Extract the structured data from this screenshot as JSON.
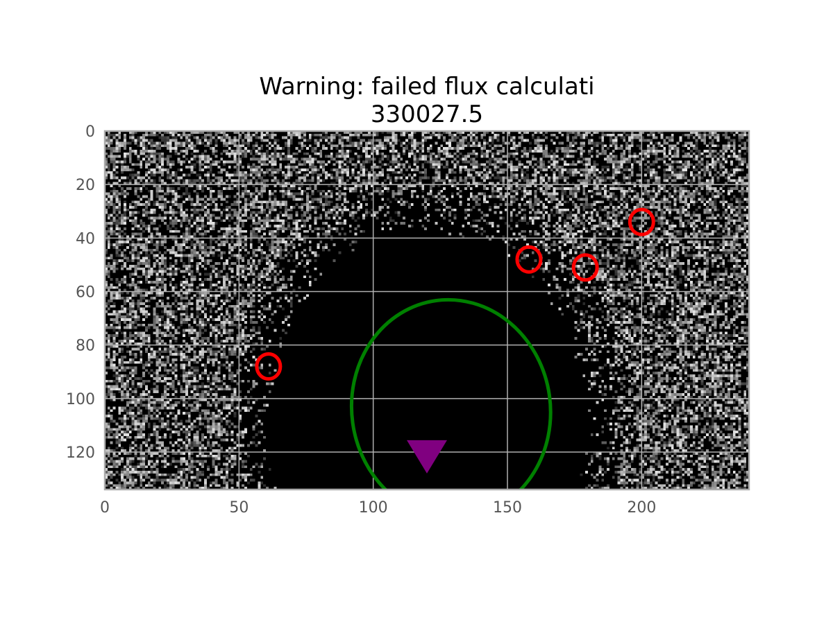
{
  "chart_data": {
    "type": "heatmap",
    "title": "Warning: failed flux calculati",
    "subtitle": "330027.5",
    "xlabel": "",
    "ylabel": "",
    "xlim": [
      0,
      240
    ],
    "ylim": [
      134,
      0
    ],
    "x_ticks": [
      0,
      50,
      100,
      150,
      200
    ],
    "y_ticks": [
      0,
      20,
      40,
      60,
      80,
      100,
      120
    ],
    "grid": true,
    "image": {
      "width": 240,
      "height": 134,
      "colormap": "gray",
      "background": "#000000",
      "dark_region": {
        "cx": 120,
        "cy": 110,
        "rx": 58,
        "ry": 72
      }
    },
    "overlays": {
      "sources": {
        "marker": "circle",
        "color": "#ff0000",
        "points": [
          {
            "x": 61,
            "y": 88
          },
          {
            "x": 158,
            "y": 48
          },
          {
            "x": 179,
            "y": 51
          },
          {
            "x": 200,
            "y": 34
          }
        ]
      },
      "aperture": {
        "shape": "ellipse",
        "color": "#008000",
        "cx": 129,
        "cy": 104,
        "rx": 37,
        "ry": 41,
        "angle_deg": -8
      },
      "target": {
        "marker": "triangle-down",
        "color": "#800080",
        "x": 120,
        "y": 121
      }
    }
  }
}
